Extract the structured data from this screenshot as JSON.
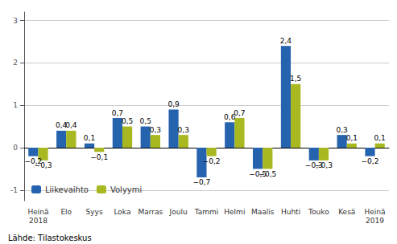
{
  "chart_data": {
    "type": "bar",
    "categories": [
      "Heinä\n2018",
      "Elo",
      "Syys",
      "Loka",
      "Marras",
      "Joulu",
      "Tammi",
      "Helmi",
      "Maalis",
      "Huhti",
      "Touko",
      "Kesä",
      "Heinä\n2019"
    ],
    "series": [
      {
        "name": "Liikevaihto",
        "color": "#2563AE",
        "values": [
          -0.2,
          0.4,
          0.1,
          0.7,
          0.5,
          0.9,
          -0.7,
          0.6,
          -0.5,
          2.4,
          -0.3,
          0.3,
          -0.2
        ],
        "value_labels": [
          "−0,2",
          "0,4",
          "0,1",
          "0,7",
          "0,5",
          "0,9",
          "−0,7",
          "0,6",
          "−0,5",
          "2,4",
          "−0,3",
          "0,3",
          "−0,2"
        ]
      },
      {
        "name": "Volyymi",
        "color": "#A8B820",
        "values": [
          -0.3,
          0.4,
          -0.1,
          0.5,
          0.3,
          0.3,
          -0.2,
          0.7,
          -0.5,
          1.5,
          -0.3,
          0.1,
          0.1
        ],
        "value_labels": [
          "−0,3",
          "0,4",
          "−0,1",
          "0,5",
          "0,3",
          "0,3",
          "−0,2",
          "0,7",
          "−0,5",
          "1,5",
          "−0,3",
          "0,1",
          "0,1"
        ]
      }
    ],
    "ylim": [
      -1.25,
      3.2
    ],
    "yticks": [
      -1,
      0,
      1,
      2,
      3
    ],
    "grid": true,
    "legend": "lower left",
    "data_labels": true,
    "annotations": [
      "Lähde: Tilastokeskus"
    ]
  }
}
